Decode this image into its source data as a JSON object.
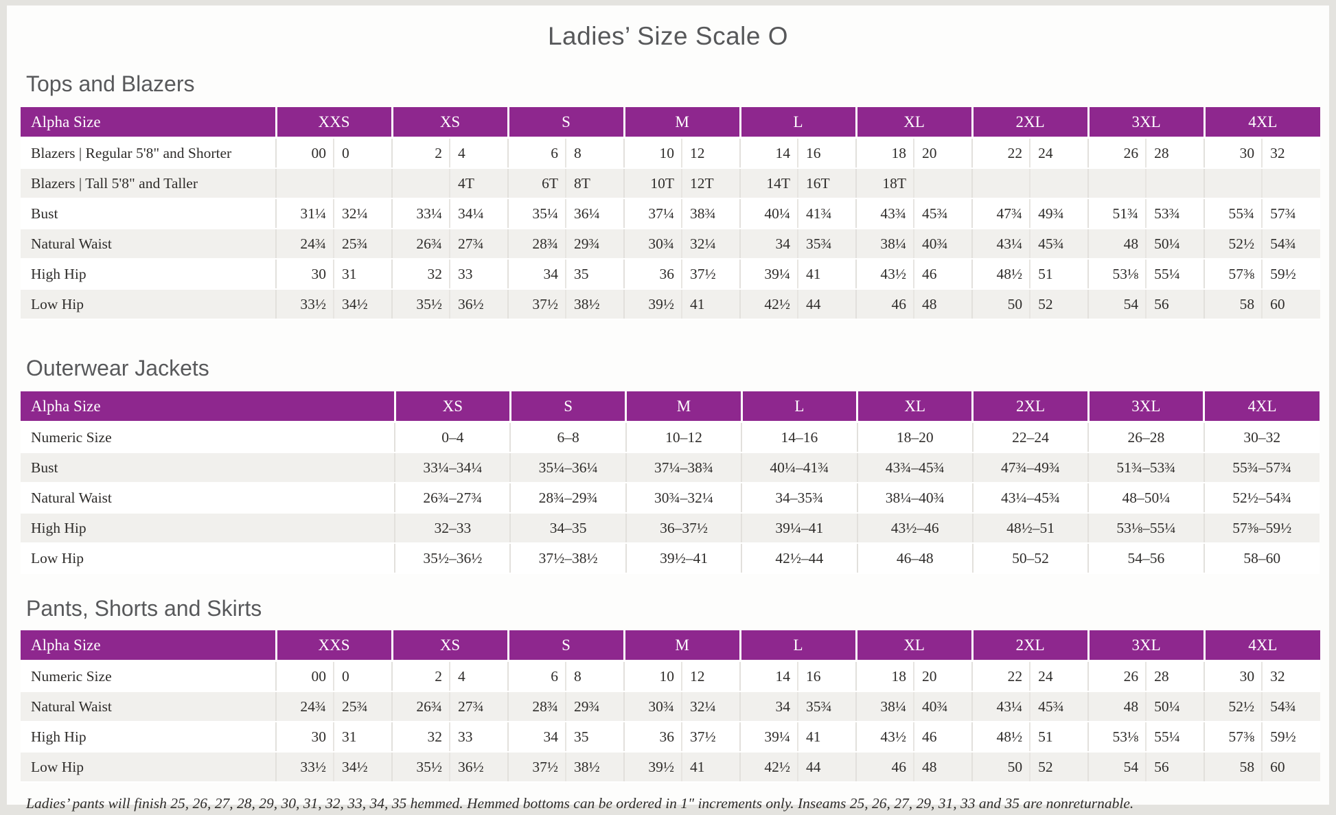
{
  "title": "Ladies’ Size Scale O",
  "colors": {
    "header_bg": "#8E278E",
    "header_text": "#FFFFFF",
    "row_alt": "#F1F0ED",
    "divider": "#E2E0DC",
    "heading_text": "#58595B",
    "body_text": "#2E2C2A",
    "page_frame": "#E4E3DF"
  },
  "tables": [
    {
      "id": "tops-and-blazers",
      "heading": "Tops and Blazers",
      "header_label": "Alpha Size",
      "split": true,
      "sizes": [
        "XXS",
        "XS",
        "S",
        "M",
        "L",
        "XL",
        "2XL",
        "3XL",
        "4XL"
      ],
      "rows": [
        {
          "label": "Blazers | Regular 5'8\" and Shorter",
          "values": [
            [
              "00",
              "0"
            ],
            [
              "2",
              "4"
            ],
            [
              "6",
              "8"
            ],
            [
              "10",
              "12"
            ],
            [
              "14",
              "16"
            ],
            [
              "18",
              "20"
            ],
            [
              "22",
              "24"
            ],
            [
              "26",
              "28"
            ],
            [
              "30",
              "32"
            ]
          ]
        },
        {
          "label": "Blazers | Tall 5'8\" and Taller",
          "values": [
            [
              "",
              ""
            ],
            [
              "",
              "4T"
            ],
            [
              "6T",
              "8T"
            ],
            [
              "10T",
              "12T"
            ],
            [
              "14T",
              "16T"
            ],
            [
              "18T",
              ""
            ],
            [
              "",
              ""
            ],
            [
              "",
              ""
            ],
            [
              "",
              ""
            ]
          ]
        },
        {
          "label": "Bust",
          "values": [
            [
              "31¼",
              "32¼"
            ],
            [
              "33¼",
              "34¼"
            ],
            [
              "35¼",
              "36¼"
            ],
            [
              "37¼",
              "38¾"
            ],
            [
              "40¼",
              "41¾"
            ],
            [
              "43¾",
              "45¾"
            ],
            [
              "47¾",
              "49¾"
            ],
            [
              "51¾",
              "53¾"
            ],
            [
              "55¾",
              "57¾"
            ]
          ]
        },
        {
          "label": "Natural Waist",
          "values": [
            [
              "24¾",
              "25¾"
            ],
            [
              "26¾",
              "27¾"
            ],
            [
              "28¾",
              "29¾"
            ],
            [
              "30¾",
              "32¼"
            ],
            [
              "34",
              "35¾"
            ],
            [
              "38¼",
              "40¾"
            ],
            [
              "43¼",
              "45¾"
            ],
            [
              "48",
              "50¼"
            ],
            [
              "52½",
              "54¾"
            ]
          ]
        },
        {
          "label": "High Hip",
          "values": [
            [
              "30",
              "31"
            ],
            [
              "32",
              "33"
            ],
            [
              "34",
              "35"
            ],
            [
              "36",
              "37½"
            ],
            [
              "39¼",
              "41"
            ],
            [
              "43½",
              "46"
            ],
            [
              "48½",
              "51"
            ],
            [
              "53⅛",
              "55¼"
            ],
            [
              "57⅜",
              "59½"
            ]
          ]
        },
        {
          "label": "Low Hip",
          "values": [
            [
              "33½",
              "34½"
            ],
            [
              "35½",
              "36½"
            ],
            [
              "37½",
              "38½"
            ],
            [
              "39½",
              "41"
            ],
            [
              "42½",
              "44"
            ],
            [
              "46",
              "48"
            ],
            [
              "50",
              "52"
            ],
            [
              "54",
              "56"
            ],
            [
              "58",
              "60"
            ]
          ]
        }
      ]
    },
    {
      "id": "outerwear-jackets",
      "heading": "Outerwear Jackets",
      "header_label": "Alpha Size",
      "split": false,
      "sizes": [
        "XS",
        "S",
        "M",
        "L",
        "XL",
        "2XL",
        "3XL",
        "4XL"
      ],
      "rows": [
        {
          "label": "Numeric Size",
          "values": [
            "0–4",
            "6–8",
            "10–12",
            "14–16",
            "18–20",
            "22–24",
            "26–28",
            "30–32"
          ]
        },
        {
          "label": "Bust",
          "values": [
            "33¼–34¼",
            "35¼–36¼",
            "37¼–38¾",
            "40¼–41¾",
            "43¾–45¾",
            "47¾–49¾",
            "51¾–53¾",
            "55¾–57¾"
          ]
        },
        {
          "label": "Natural Waist",
          "values": [
            "26¾–27¾",
            "28¾–29¾",
            "30¾–32¼",
            "34–35¾",
            "38¼–40¾",
            "43¼–45¾",
            "48–50¼",
            "52½–54¾"
          ]
        },
        {
          "label": "High Hip",
          "values": [
            "32–33",
            "34–35",
            "36–37½",
            "39¼–41",
            "43½–46",
            "48½–51",
            "53⅛–55¼",
            "57⅜–59½"
          ]
        },
        {
          "label": "Low Hip",
          "values": [
            "35½–36½",
            "37½–38½",
            "39½–41",
            "42½–44",
            "46–48",
            "50–52",
            "54–56",
            "58–60"
          ]
        }
      ]
    },
    {
      "id": "pants-shorts-skirts",
      "heading": "Pants, Shorts and Skirts",
      "header_label": "Alpha Size",
      "split": true,
      "sizes": [
        "XXS",
        "XS",
        "S",
        "M",
        "L",
        "XL",
        "2XL",
        "3XL",
        "4XL"
      ],
      "rows": [
        {
          "label": "Numeric Size",
          "values": [
            [
              "00",
              "0"
            ],
            [
              "2",
              "4"
            ],
            [
              "6",
              "8"
            ],
            [
              "10",
              "12"
            ],
            [
              "14",
              "16"
            ],
            [
              "18",
              "20"
            ],
            [
              "22",
              "24"
            ],
            [
              "26",
              "28"
            ],
            [
              "30",
              "32"
            ]
          ]
        },
        {
          "label": "Natural Waist",
          "values": [
            [
              "24¾",
              "25¾"
            ],
            [
              "26¾",
              "27¾"
            ],
            [
              "28¾",
              "29¾"
            ],
            [
              "30¾",
              "32¼"
            ],
            [
              "34",
              "35¾"
            ],
            [
              "38¼",
              "40¾"
            ],
            [
              "43¼",
              "45¾"
            ],
            [
              "48",
              "50¼"
            ],
            [
              "52½",
              "54¾"
            ]
          ]
        },
        {
          "label": "High Hip",
          "values": [
            [
              "30",
              "31"
            ],
            [
              "32",
              "33"
            ],
            [
              "34",
              "35"
            ],
            [
              "36",
              "37½"
            ],
            [
              "39¼",
              "41"
            ],
            [
              "43½",
              "46"
            ],
            [
              "48½",
              "51"
            ],
            [
              "53⅛",
              "55¼"
            ],
            [
              "57⅜",
              "59½"
            ]
          ]
        },
        {
          "label": "Low Hip",
          "values": [
            [
              "33½",
              "34½"
            ],
            [
              "35½",
              "36½"
            ],
            [
              "37½",
              "38½"
            ],
            [
              "39½",
              "41"
            ],
            [
              "42½",
              "44"
            ],
            [
              "46",
              "48"
            ],
            [
              "50",
              "52"
            ],
            [
              "54",
              "56"
            ],
            [
              "58",
              "60"
            ]
          ]
        }
      ]
    }
  ],
  "footnote": "Ladies’ pants will finish 25, 26, 27, 28, 29, 30, 31, 32, 33, 34, 35 hemmed. Hemmed bottoms can be ordered in 1\" increments only. Inseams 25, 26, 27, 29, 31, 33 and 35 are nonreturnable."
}
